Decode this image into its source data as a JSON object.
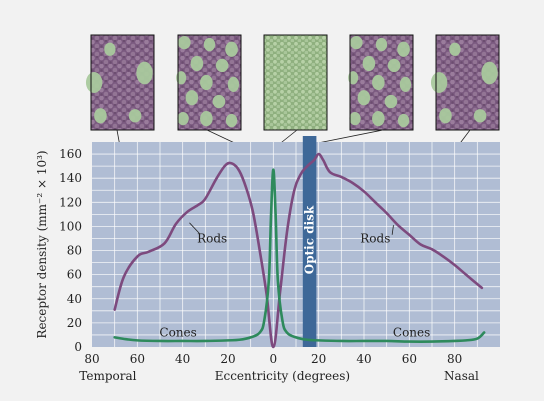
{
  "chart_data": {
    "type": "line",
    "xlabel": "Eccentricity (degrees)",
    "ylabel": "Receptor density (mm⁻² × 10³)",
    "xlim": [
      -80,
      100
    ],
    "ylim": [
      0,
      170
    ],
    "x_ticks": [
      -80,
      -60,
      -40,
      -20,
      0,
      20,
      40,
      60,
      80
    ],
    "x_tick_labels": [
      "80",
      "60",
      "40",
      "20",
      "0",
      "20",
      "40",
      "60",
      "80"
    ],
    "y_ticks": [
      0,
      20,
      40,
      60,
      80,
      100,
      120,
      140,
      160
    ],
    "x_region_labels": {
      "left": "Temporal",
      "right": "Nasal"
    },
    "grid": true,
    "colors": {
      "plot_background": "#b0bdd4",
      "grid": "#ffffff",
      "rods": "#7d4a7e",
      "cones": "#2e8a5c",
      "optic_disk": "#3e6898",
      "swatch_purple": "#8c6c8e",
      "swatch_green": "#a9c99d"
    },
    "optic_disk": {
      "label": "Optic disk",
      "x_range": [
        13,
        19
      ]
    },
    "series": [
      {
        "name": "Rods",
        "label_positions": [
          {
            "x": -27,
            "y": 90
          },
          {
            "x": 45,
            "y": 90
          }
        ],
        "x": [
          -70,
          -66,
          -60,
          -55,
          -48,
          -43,
          -38,
          -33,
          -30,
          -25,
          -21,
          -18,
          -15,
          -12,
          -9,
          -6,
          -3,
          0,
          3,
          6,
          9,
          12,
          15,
          18,
          20,
          22,
          25,
          30,
          35,
          40,
          45,
          50,
          55,
          60,
          65,
          70,
          75,
          80,
          85,
          92
        ],
        "values": [
          31,
          58,
          75,
          79,
          86,
          102,
          112,
          118,
          123,
          140,
          151,
          152,
          146,
          132,
          112,
          80,
          44,
          0,
          46,
          95,
          128,
          143,
          150,
          155,
          160,
          155,
          145,
          141,
          136,
          129,
          120,
          111,
          101,
          93,
          85,
          81,
          75,
          68,
          60,
          49
        ]
      },
      {
        "name": "Cones",
        "label_positions": [
          {
            "x": -42,
            "y": 12
          },
          {
            "x": 61,
            "y": 12
          }
        ],
        "x": [
          -70,
          -65,
          -60,
          -50,
          -40,
          -30,
          -20,
          -15,
          -10,
          -6,
          -4,
          -2,
          -1,
          0,
          1,
          2,
          4,
          6,
          10,
          15,
          20,
          30,
          40,
          50,
          60,
          70,
          80,
          85,
          90,
          93
        ],
        "values": [
          8,
          6.5,
          5.5,
          5,
          5,
          5,
          5.5,
          6,
          8,
          12,
          22,
          55,
          110,
          147,
          110,
          55,
          22,
          12,
          8,
          6,
          5.5,
          5,
          5,
          5,
          4.5,
          4.5,
          5,
          5.5,
          7,
          12
        ]
      }
    ],
    "retina_samples": [
      {
        "position": "temporal periphery",
        "x": -70,
        "pattern": "large-cones-dense-rods"
      },
      {
        "position": "temporal near fovea",
        "x": -15,
        "pattern": "many-cones-among-rods"
      },
      {
        "position": "fovea",
        "x": 0,
        "pattern": "cones-only"
      },
      {
        "position": "nasal near fovea",
        "x": 5,
        "pattern": "many-cones-among-rods"
      },
      {
        "position": "nasal periphery",
        "x": 45,
        "pattern": "large-cones-dense-rods"
      }
    ]
  }
}
